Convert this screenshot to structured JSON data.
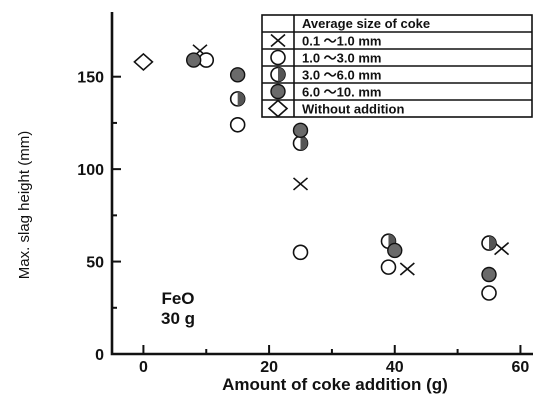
{
  "chart_data": {
    "type": "scatter",
    "title": "",
    "xlabel": "Amount of coke addition (g)",
    "ylabel": "Max. slag height (mm)",
    "xlim": [
      -5,
      62
    ],
    "ylim": [
      0,
      185
    ],
    "xticks": [
      0,
      20,
      40,
      60
    ],
    "yticks": [
      0,
      50,
      100,
      150
    ],
    "grid": false,
    "legend": {
      "placement": "top-right",
      "title": "Average size of coke",
      "entries": [
        {
          "marker": "x",
          "label": "0.1 ～1.0 mm"
        },
        {
          "marker": "open-circle",
          "label": "1.0 ～3.0 mm"
        },
        {
          "marker": "half-circle",
          "label": "3.0 ～6.0 mm"
        },
        {
          "marker": "filled-circle",
          "label": "6.0 ～10. mm"
        },
        {
          "marker": "diamond",
          "label": "Without addition"
        }
      ]
    },
    "series": [
      {
        "marker": "x",
        "points": [
          [
            9,
            164
          ],
          [
            25,
            92
          ],
          [
            42,
            46
          ],
          [
            57,
            57
          ]
        ]
      },
      {
        "marker": "open-circle",
        "points": [
          [
            10,
            159
          ],
          [
            15,
            124
          ],
          [
            25,
            55
          ],
          [
            39,
            47
          ],
          [
            55,
            33
          ]
        ]
      },
      {
        "marker": "half-circle",
        "points": [
          [
            15,
            138
          ],
          [
            25,
            114
          ],
          [
            39,
            61
          ],
          [
            55,
            60
          ]
        ]
      },
      {
        "marker": "filled-circle",
        "points": [
          [
            8,
            159
          ],
          [
            15,
            151
          ],
          [
            25,
            121
          ],
          [
            40,
            56
          ],
          [
            55,
            43
          ]
        ]
      },
      {
        "marker": "diamond",
        "points": [
          [
            0,
            158
          ]
        ]
      }
    ],
    "annotations": [
      "FeO",
      "30 g"
    ]
  }
}
